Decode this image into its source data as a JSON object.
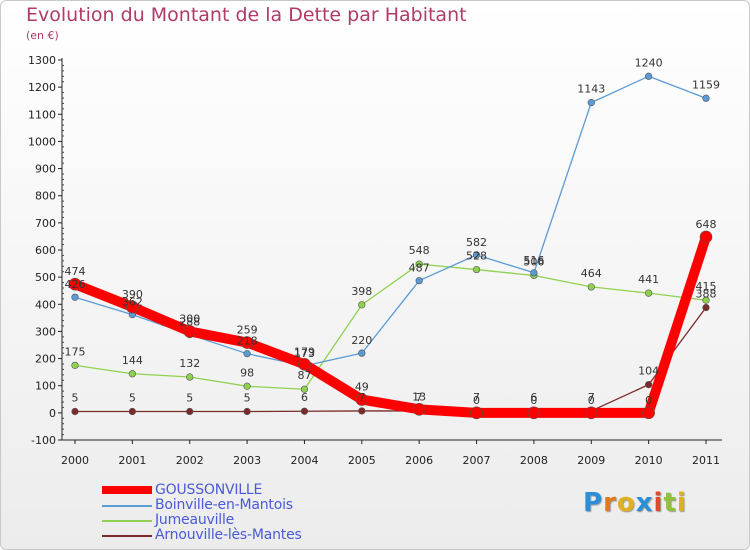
{
  "title": "Evolution du Montant de la Dette par Habitant",
  "unit": "(en €)",
  "logo": {
    "text": "Proxiti",
    "letters": [
      "P",
      "r",
      "o",
      "x",
      "i",
      "t",
      "i"
    ],
    "colors": [
      "#2a8fd6",
      "#e07a1a",
      "#e0b020",
      "#2a8fd6",
      "#e04a2a",
      "#8fc23a",
      "#e0b020"
    ]
  },
  "chart_data": {
    "type": "line",
    "x": [
      "2000",
      "2001",
      "2002",
      "2003",
      "2004",
      "2005",
      "2006",
      "2007",
      "2008",
      "2009",
      "2010",
      "2011"
    ],
    "ylim": [
      -100,
      1300
    ],
    "yticks": [
      -100,
      0,
      100,
      200,
      300,
      400,
      500,
      600,
      700,
      800,
      900,
      1000,
      1100,
      1200,
      1300
    ],
    "grid": false,
    "legend_position": "bottom-left",
    "series": [
      {
        "name": "Boinville-en-Mantois",
        "color": "#5b9bd5",
        "values": [
          426,
          362,
          288,
          218,
          173,
          220,
          487,
          582,
          516,
          1143,
          1240,
          1159
        ],
        "labels": [
          "426",
          "362",
          "288",
          "218",
          "173",
          "220",
          "487",
          "582",
          "516",
          "1143",
          "1240",
          "1159"
        ]
      },
      {
        "name": "Jumeauville",
        "color": "#8fd14f",
        "values": [
          175,
          144,
          132,
          98,
          87,
          398,
          548,
          528,
          506,
          464,
          441,
          415
        ],
        "labels": [
          "175",
          "144",
          "132",
          "98",
          "87",
          "398",
          "548",
          "528",
          "506",
          "464",
          "441",
          "415"
        ]
      },
      {
        "name": "Arnouville-lès-Mantes",
        "color": "#7b2a2a",
        "values": [
          5,
          5,
          5,
          5,
          6,
          7,
          7,
          7,
          6,
          7,
          104,
          388
        ],
        "labels": [
          "5",
          "5",
          "5",
          "5",
          "6",
          "7",
          "7",
          "7",
          "6",
          "7",
          "104",
          "388"
        ]
      },
      {
        "name": "GOUSSONVILLE",
        "color": "#ff0000",
        "values": [
          474,
          390,
          300,
          259,
          179,
          49,
          13,
          0,
          0,
          0,
          0,
          648
        ],
        "labels": [
          "474",
          "390",
          "300",
          "259",
          "179",
          "49",
          "13",
          "0",
          "0",
          "0",
          "0",
          "648"
        ]
      }
    ],
    "legend_order": [
      "GOUSSONVILLE",
      "Boinville-en-Mantois",
      "Jumeauville",
      "Arnouville-lès-Mantes"
    ]
  }
}
